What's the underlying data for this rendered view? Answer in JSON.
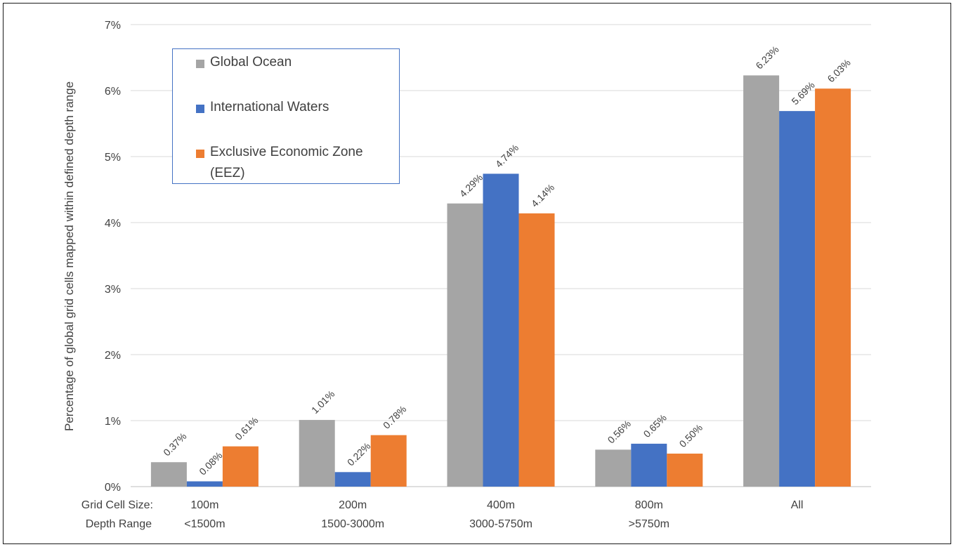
{
  "chart_data": {
    "type": "bar",
    "ylabel": "Percentage of global grid cells mapped within defined depth range",
    "ylim": [
      0,
      7
    ],
    "yticks": [
      "0%",
      "1%",
      "2%",
      "3%",
      "4%",
      "5%",
      "6%",
      "7%"
    ],
    "grid": true,
    "row_labels": [
      "Grid Cell Size:",
      "Depth Range"
    ],
    "categories": [
      {
        "size": "100m",
        "range": "<1500m"
      },
      {
        "size": "200m",
        "range": "1500-3000m"
      },
      {
        "size": "400m",
        "range": "3000-5750m"
      },
      {
        "size": "800m",
        "range": ">5750m"
      },
      {
        "size": "All",
        "range": ""
      }
    ],
    "series": [
      {
        "name": "Global Ocean",
        "color": "#a5a5a5",
        "values": [
          0.37,
          1.01,
          4.29,
          0.56,
          6.23
        ],
        "labels": [
          "0.37%",
          "1.01%",
          "4.29%",
          "0.56%",
          "6.23%"
        ]
      },
      {
        "name": "International Waters",
        "color": "#4472c4",
        "values": [
          0.08,
          0.22,
          4.74,
          0.65,
          5.69
        ],
        "labels": [
          "0.08%",
          "0.22%",
          "4.74%",
          "0.65%",
          "5.69%"
        ]
      },
      {
        "name": "Exclusive Economic Zone (EEZ)",
        "color": "#ed7d31",
        "values": [
          0.61,
          0.78,
          4.14,
          0.5,
          6.03
        ],
        "labels": [
          "0.61%",
          "0.78%",
          "4.14%",
          "0.50%",
          "6.03%"
        ]
      }
    ],
    "legend_position": "top-left"
  }
}
